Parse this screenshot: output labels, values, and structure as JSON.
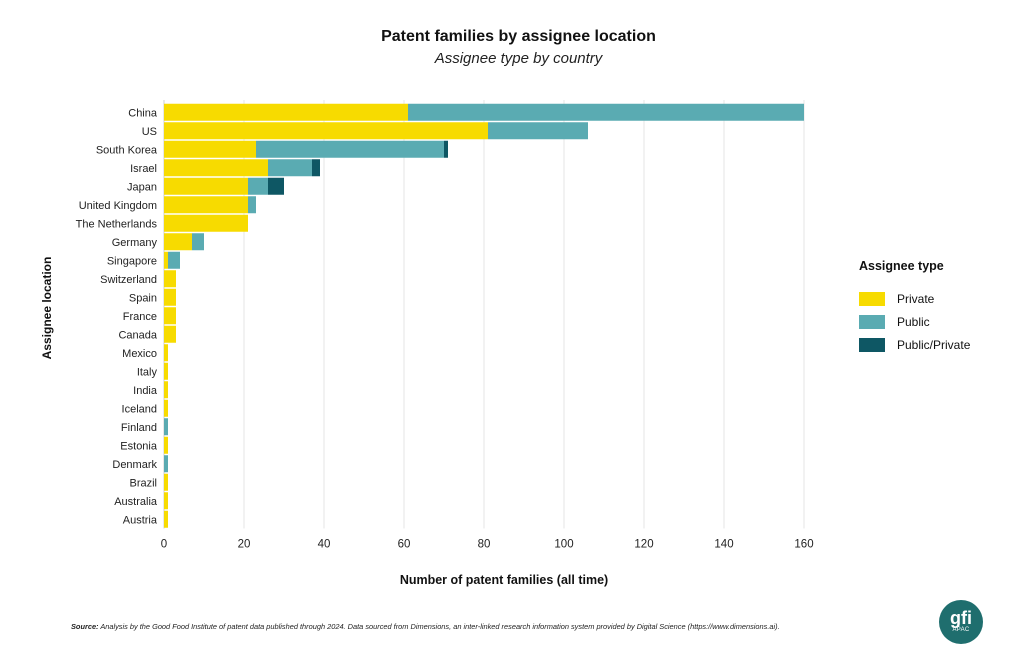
{
  "chart_data": {
    "type": "bar",
    "orientation": "horizontal",
    "stacked": true,
    "title": "Patent families by assignee location",
    "subtitle": "Assignee type by country",
    "xlabel": "Number of patent families (all time)",
    "ylabel": "Assignee location",
    "xlim": [
      0,
      160
    ],
    "xticks": [
      0,
      20,
      40,
      60,
      80,
      100,
      120,
      140,
      160
    ],
    "grid": "vertical",
    "legend_title": "Assignee type",
    "legend_position": "right",
    "categories": [
      "China",
      "US",
      "South Korea",
      "Israel",
      "Japan",
      "United Kingdom",
      "The Netherlands",
      "Germany",
      "Singapore",
      "Switzerland",
      "Spain",
      "France",
      "Canada",
      "Mexico",
      "Italy",
      "India",
      "Iceland",
      "Finland",
      "Estonia",
      "Denmark",
      "Brazil",
      "Australia",
      "Austria"
    ],
    "series": [
      {
        "name": "Private",
        "color": "#f7db00",
        "values": [
          61,
          81,
          23,
          26,
          21,
          21,
          21,
          7,
          1,
          3,
          3,
          3,
          3,
          1,
          1,
          1,
          1,
          0,
          1,
          0,
          1,
          1,
          1
        ]
      },
      {
        "name": "Public",
        "color": "#5aabb2",
        "values": [
          99,
          25,
          47,
          11,
          5,
          2,
          0,
          3,
          3,
          0,
          0,
          0,
          0,
          0,
          0,
          0,
          0,
          1,
          0,
          1,
          0,
          0,
          0
        ]
      },
      {
        "name": "Public/Private",
        "color": "#0e5764",
        "values": [
          0,
          0,
          1,
          2,
          4,
          0,
          0,
          0,
          0,
          0,
          0,
          0,
          0,
          0,
          0,
          0,
          0,
          0,
          0,
          0,
          0,
          0,
          0
        ]
      }
    ]
  },
  "source": {
    "label": "Source:",
    "text": "Analysis by the Good Food Institute of patent data published through 2024. Data sourced from Dimensions, an inter-linked research information system provided by Digital Science (https://www.dimensions.ai)."
  },
  "logo": {
    "main": "gfi",
    "sub": "APAC"
  }
}
